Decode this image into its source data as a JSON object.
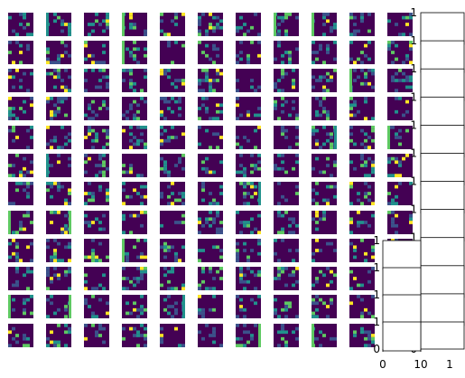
{
  "chart_data": {
    "type": "heatmap",
    "title": "",
    "grid": {
      "rows": 12,
      "cols": 11
    },
    "colormap": "viridis",
    "colors": [
      "#440154",
      "#3b528b",
      "#21918c",
      "#5ec962",
      "#fde725"
    ],
    "background": "#ffffff",
    "right_column_axes": {
      "count": 12,
      "yticklabels": [
        "1",
        "0"
      ],
      "xticklabels": []
    },
    "lower_overlay_axes": {
      "count": 4,
      "yticklabels": [
        "1",
        "0"
      ],
      "xticklabels": [
        "0",
        "10"
      ]
    },
    "corner_xticklabel": "1"
  }
}
